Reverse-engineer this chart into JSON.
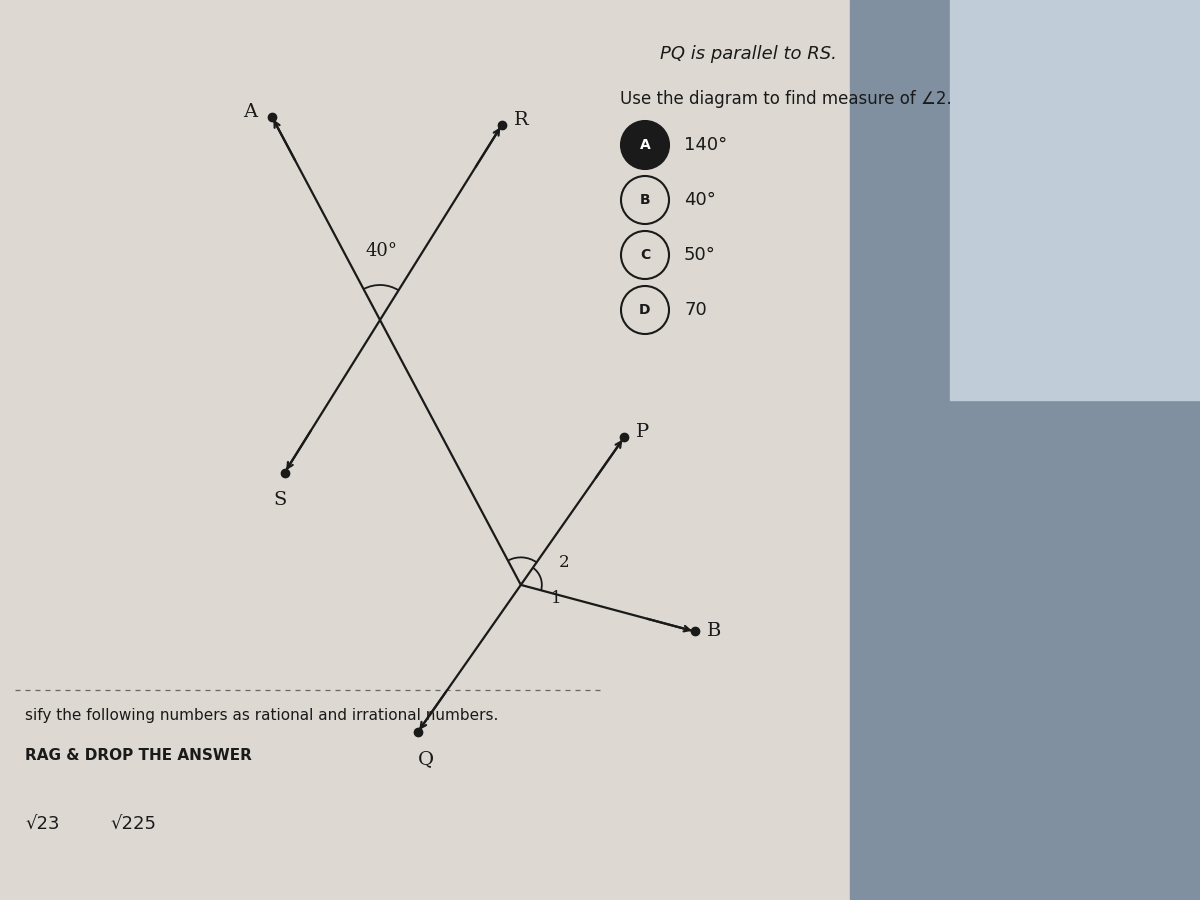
{
  "bg_color_left": "#d4cfc8",
  "bg_color_right": "#c8d0d8",
  "bg_color_top_right": "#b8c4cc",
  "title_line1": "PQ is parallel to RS.",
  "title_line2": "Use the diagram to find measure of ∠2.",
  "angle_40": "40°",
  "label_A": "A",
  "label_R": "R",
  "label_S": "S",
  "label_P": "P",
  "label_B": "B",
  "label_Q": "Q",
  "label_2": "2",
  "label_1": "1",
  "opt_A_letter": "A",
  "opt_A_text": "140°",
  "opt_B_letter": "B",
  "opt_B_text": "40°",
  "opt_C_letter": "C",
  "opt_C_text": "50°",
  "opt_D_letter": "D",
  "opt_D_text": "70",
  "bottom_label": "sify the following numbers as rational and irrational numbers.",
  "drag_label": "RAG & DROP THE ANSWER",
  "sqrt23": "√23",
  "sqrt225": "√225",
  "line_color": "#1a1a1a",
  "text_color": "#1a1a1a",
  "dot_size": 6,
  "lw": 1.6
}
